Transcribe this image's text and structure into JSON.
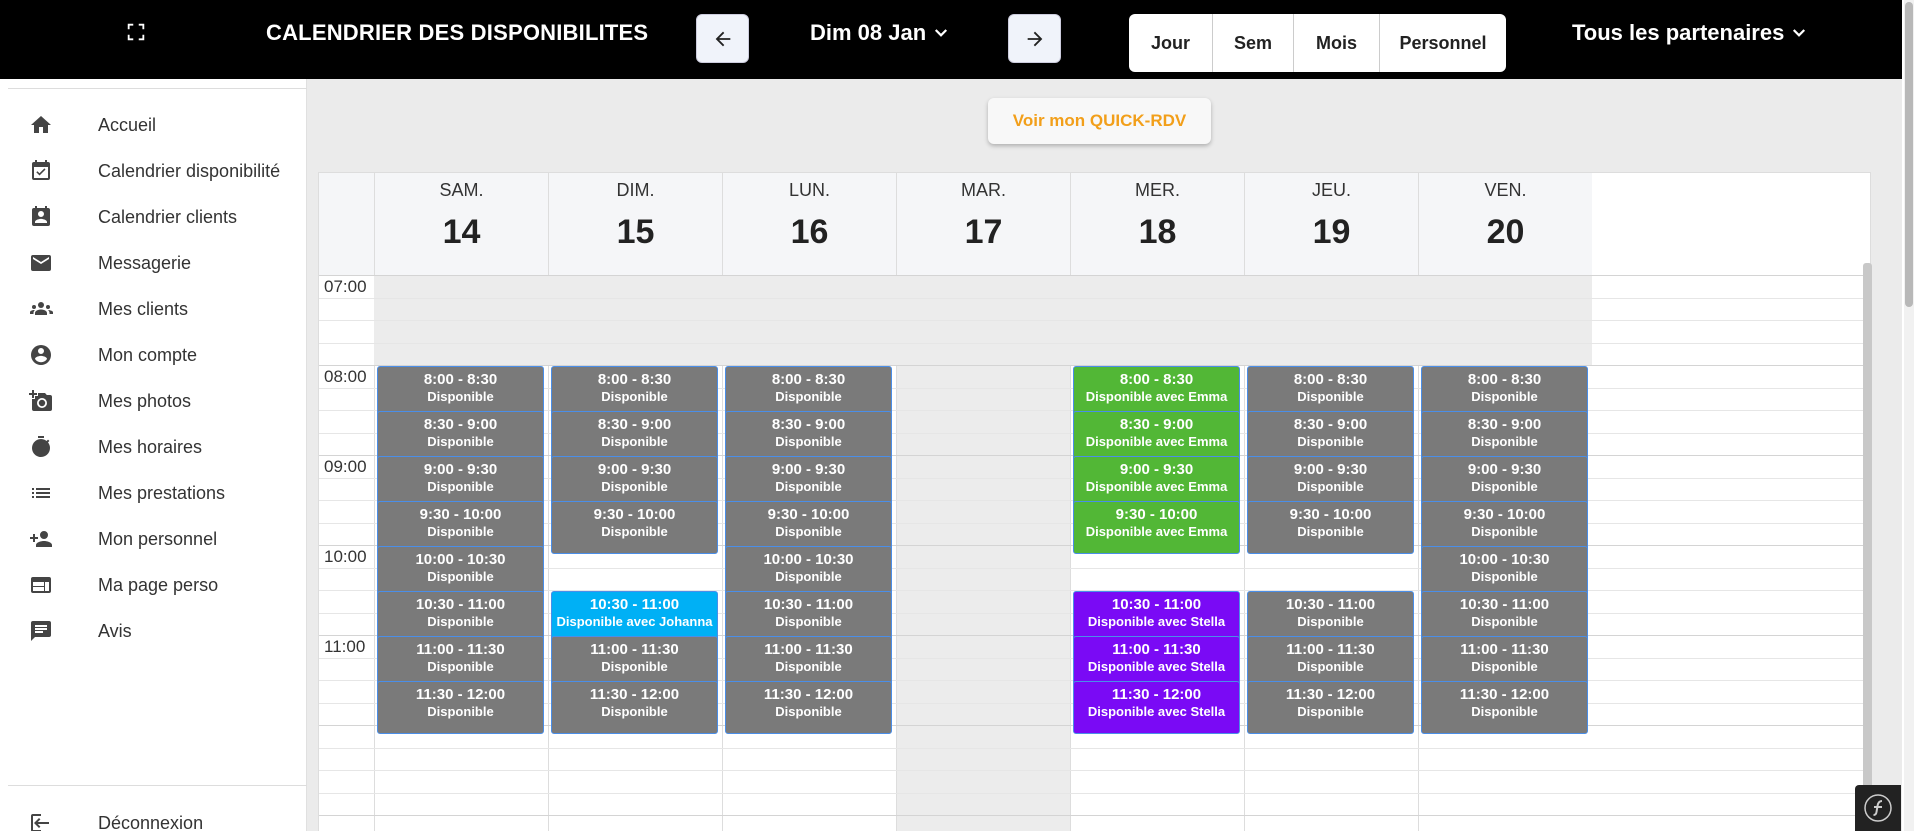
{
  "topbar": {
    "title": "CALENDRIER DES DISPONIBILITES",
    "date_label": "Dim 08 Jan",
    "views": [
      "Jour",
      "Sem",
      "Mois",
      "Personnel"
    ],
    "partners_label": "Tous les partenaires"
  },
  "sidebar": {
    "items": [
      {
        "label": "Accueil",
        "icon": "home-icon"
      },
      {
        "label": "Calendrier disponibilité",
        "icon": "calendar-check-icon"
      },
      {
        "label": "Calendrier clients",
        "icon": "calendar-clients-icon"
      },
      {
        "label": "Messagerie",
        "icon": "mail-icon"
      },
      {
        "label": "Mes clients",
        "icon": "group-icon"
      },
      {
        "label": "Mon compte",
        "icon": "account-icon"
      },
      {
        "label": "Mes photos",
        "icon": "add-photo-icon"
      },
      {
        "label": "Mes horaires",
        "icon": "timer-icon"
      },
      {
        "label": "Mes prestations",
        "icon": "list-icon"
      },
      {
        "label": "Mon personnel",
        "icon": "person-add-icon"
      },
      {
        "label": "Ma page perso",
        "icon": "web-page-icon"
      },
      {
        "label": "Avis",
        "icon": "comment-icon"
      }
    ],
    "logout_label": "Déconnexion"
  },
  "main": {
    "quick_button": "Voir mon QUICK-RDV"
  },
  "colors": {
    "available": "#7a7a7a",
    "emma": "#52b736",
    "johanna": "#00b0f5",
    "stella": "#7a0af5",
    "quick_accent": "#f29f1a"
  },
  "calendar": {
    "time_labels": [
      "07:00",
      "08:00",
      "09:00",
      "10:00",
      "11:00"
    ],
    "days": [
      {
        "name": "SAM.",
        "num": "14",
        "slots": [
          {
            "time": "8:00 - 8:30",
            "desc": "Disponible",
            "color": "available"
          },
          {
            "time": "8:30 - 9:00",
            "desc": "Disponible",
            "color": "available"
          },
          {
            "time": "9:00 - 9:30",
            "desc": "Disponible",
            "color": "available"
          },
          {
            "time": "9:30 - 10:00",
            "desc": "Disponible",
            "color": "available"
          },
          {
            "time": "10:00 - 10:30",
            "desc": "Disponible",
            "color": "available"
          },
          {
            "time": "10:30 - 11:00",
            "desc": "Disponible",
            "color": "available"
          },
          {
            "time": "11:00 - 11:30",
            "desc": "Disponible",
            "color": "available"
          },
          {
            "time": "11:30 - 12:00",
            "desc": "Disponible",
            "color": "available"
          }
        ]
      },
      {
        "name": "DIM.",
        "num": "15",
        "slots": [
          {
            "time": "8:00 - 8:30",
            "desc": "Disponible",
            "color": "available"
          },
          {
            "time": "8:30 - 9:00",
            "desc": "Disponible",
            "color": "available"
          },
          {
            "time": "9:00 - 9:30",
            "desc": "Disponible",
            "color": "available"
          },
          {
            "time": "9:30 - 10:00",
            "desc": "Disponible",
            "color": "available"
          },
          {
            "time": "10:30 - 11:00",
            "desc": "Disponible avec Johanna",
            "color": "johanna"
          },
          {
            "time": "11:00 - 11:30",
            "desc": "Disponible",
            "color": "available"
          },
          {
            "time": "11:30 - 12:00",
            "desc": "Disponible",
            "color": "available"
          }
        ]
      },
      {
        "name": "LUN.",
        "num": "16",
        "slots": [
          {
            "time": "8:00 - 8:30",
            "desc": "Disponible",
            "color": "available"
          },
          {
            "time": "8:30 - 9:00",
            "desc": "Disponible",
            "color": "available"
          },
          {
            "time": "9:00 - 9:30",
            "desc": "Disponible",
            "color": "available"
          },
          {
            "time": "9:30 - 10:00",
            "desc": "Disponible",
            "color": "available"
          },
          {
            "time": "10:00 - 10:30",
            "desc": "Disponible",
            "color": "available"
          },
          {
            "time": "10:30 - 11:00",
            "desc": "Disponible",
            "color": "available"
          },
          {
            "time": "11:00 - 11:30",
            "desc": "Disponible",
            "color": "available"
          },
          {
            "time": "11:30 - 12:00",
            "desc": "Disponible",
            "color": "available"
          }
        ]
      },
      {
        "name": "MAR.",
        "num": "17",
        "slots": []
      },
      {
        "name": "MER.",
        "num": "18",
        "slots": [
          {
            "time": "8:00 - 8:30",
            "desc": "Disponible avec Emma",
            "color": "emma"
          },
          {
            "time": "8:30 - 9:00",
            "desc": "Disponible avec Emma",
            "color": "emma"
          },
          {
            "time": "9:00 - 9:30",
            "desc": "Disponible avec Emma",
            "color": "emma"
          },
          {
            "time": "9:30 - 10:00",
            "desc": "Disponible avec Emma",
            "color": "emma"
          },
          {
            "time": "10:30 - 11:00",
            "desc": "Disponible avec Stella",
            "color": "stella"
          },
          {
            "time": "11:00 - 11:30",
            "desc": "Disponible avec Stella",
            "color": "stella"
          },
          {
            "time": "11:30 - 12:00",
            "desc": "Disponible avec Stella",
            "color": "stella"
          }
        ]
      },
      {
        "name": "JEU.",
        "num": "19",
        "slots": [
          {
            "time": "8:00 - 8:30",
            "desc": "Disponible",
            "color": "available"
          },
          {
            "time": "8:30 - 9:00",
            "desc": "Disponible",
            "color": "available"
          },
          {
            "time": "9:00 - 9:30",
            "desc": "Disponible",
            "color": "available"
          },
          {
            "time": "9:30 - 10:00",
            "desc": "Disponible",
            "color": "available"
          },
          {
            "time": "10:30 - 11:00",
            "desc": "Disponible",
            "color": "available"
          },
          {
            "time": "11:00 - 11:30",
            "desc": "Disponible",
            "color": "available"
          },
          {
            "time": "11:30 - 12:00",
            "desc": "Disponible",
            "color": "available"
          }
        ]
      },
      {
        "name": "VEN.",
        "num": "20",
        "slots": [
          {
            "time": "8:00 - 8:30",
            "desc": "Disponible",
            "color": "available"
          },
          {
            "time": "8:30 - 9:00",
            "desc": "Disponible",
            "color": "available"
          },
          {
            "time": "9:00 - 9:30",
            "desc": "Disponible",
            "color": "available"
          },
          {
            "time": "9:30 - 10:00",
            "desc": "Disponible",
            "color": "available"
          },
          {
            "time": "10:00 - 10:30",
            "desc": "Disponible",
            "color": "available"
          },
          {
            "time": "10:30 - 11:00",
            "desc": "Disponible",
            "color": "available"
          },
          {
            "time": "11:00 - 11:30",
            "desc": "Disponible",
            "color": "available"
          },
          {
            "time": "11:30 - 12:00",
            "desc": "Disponible",
            "color": "available"
          }
        ]
      }
    ]
  }
}
